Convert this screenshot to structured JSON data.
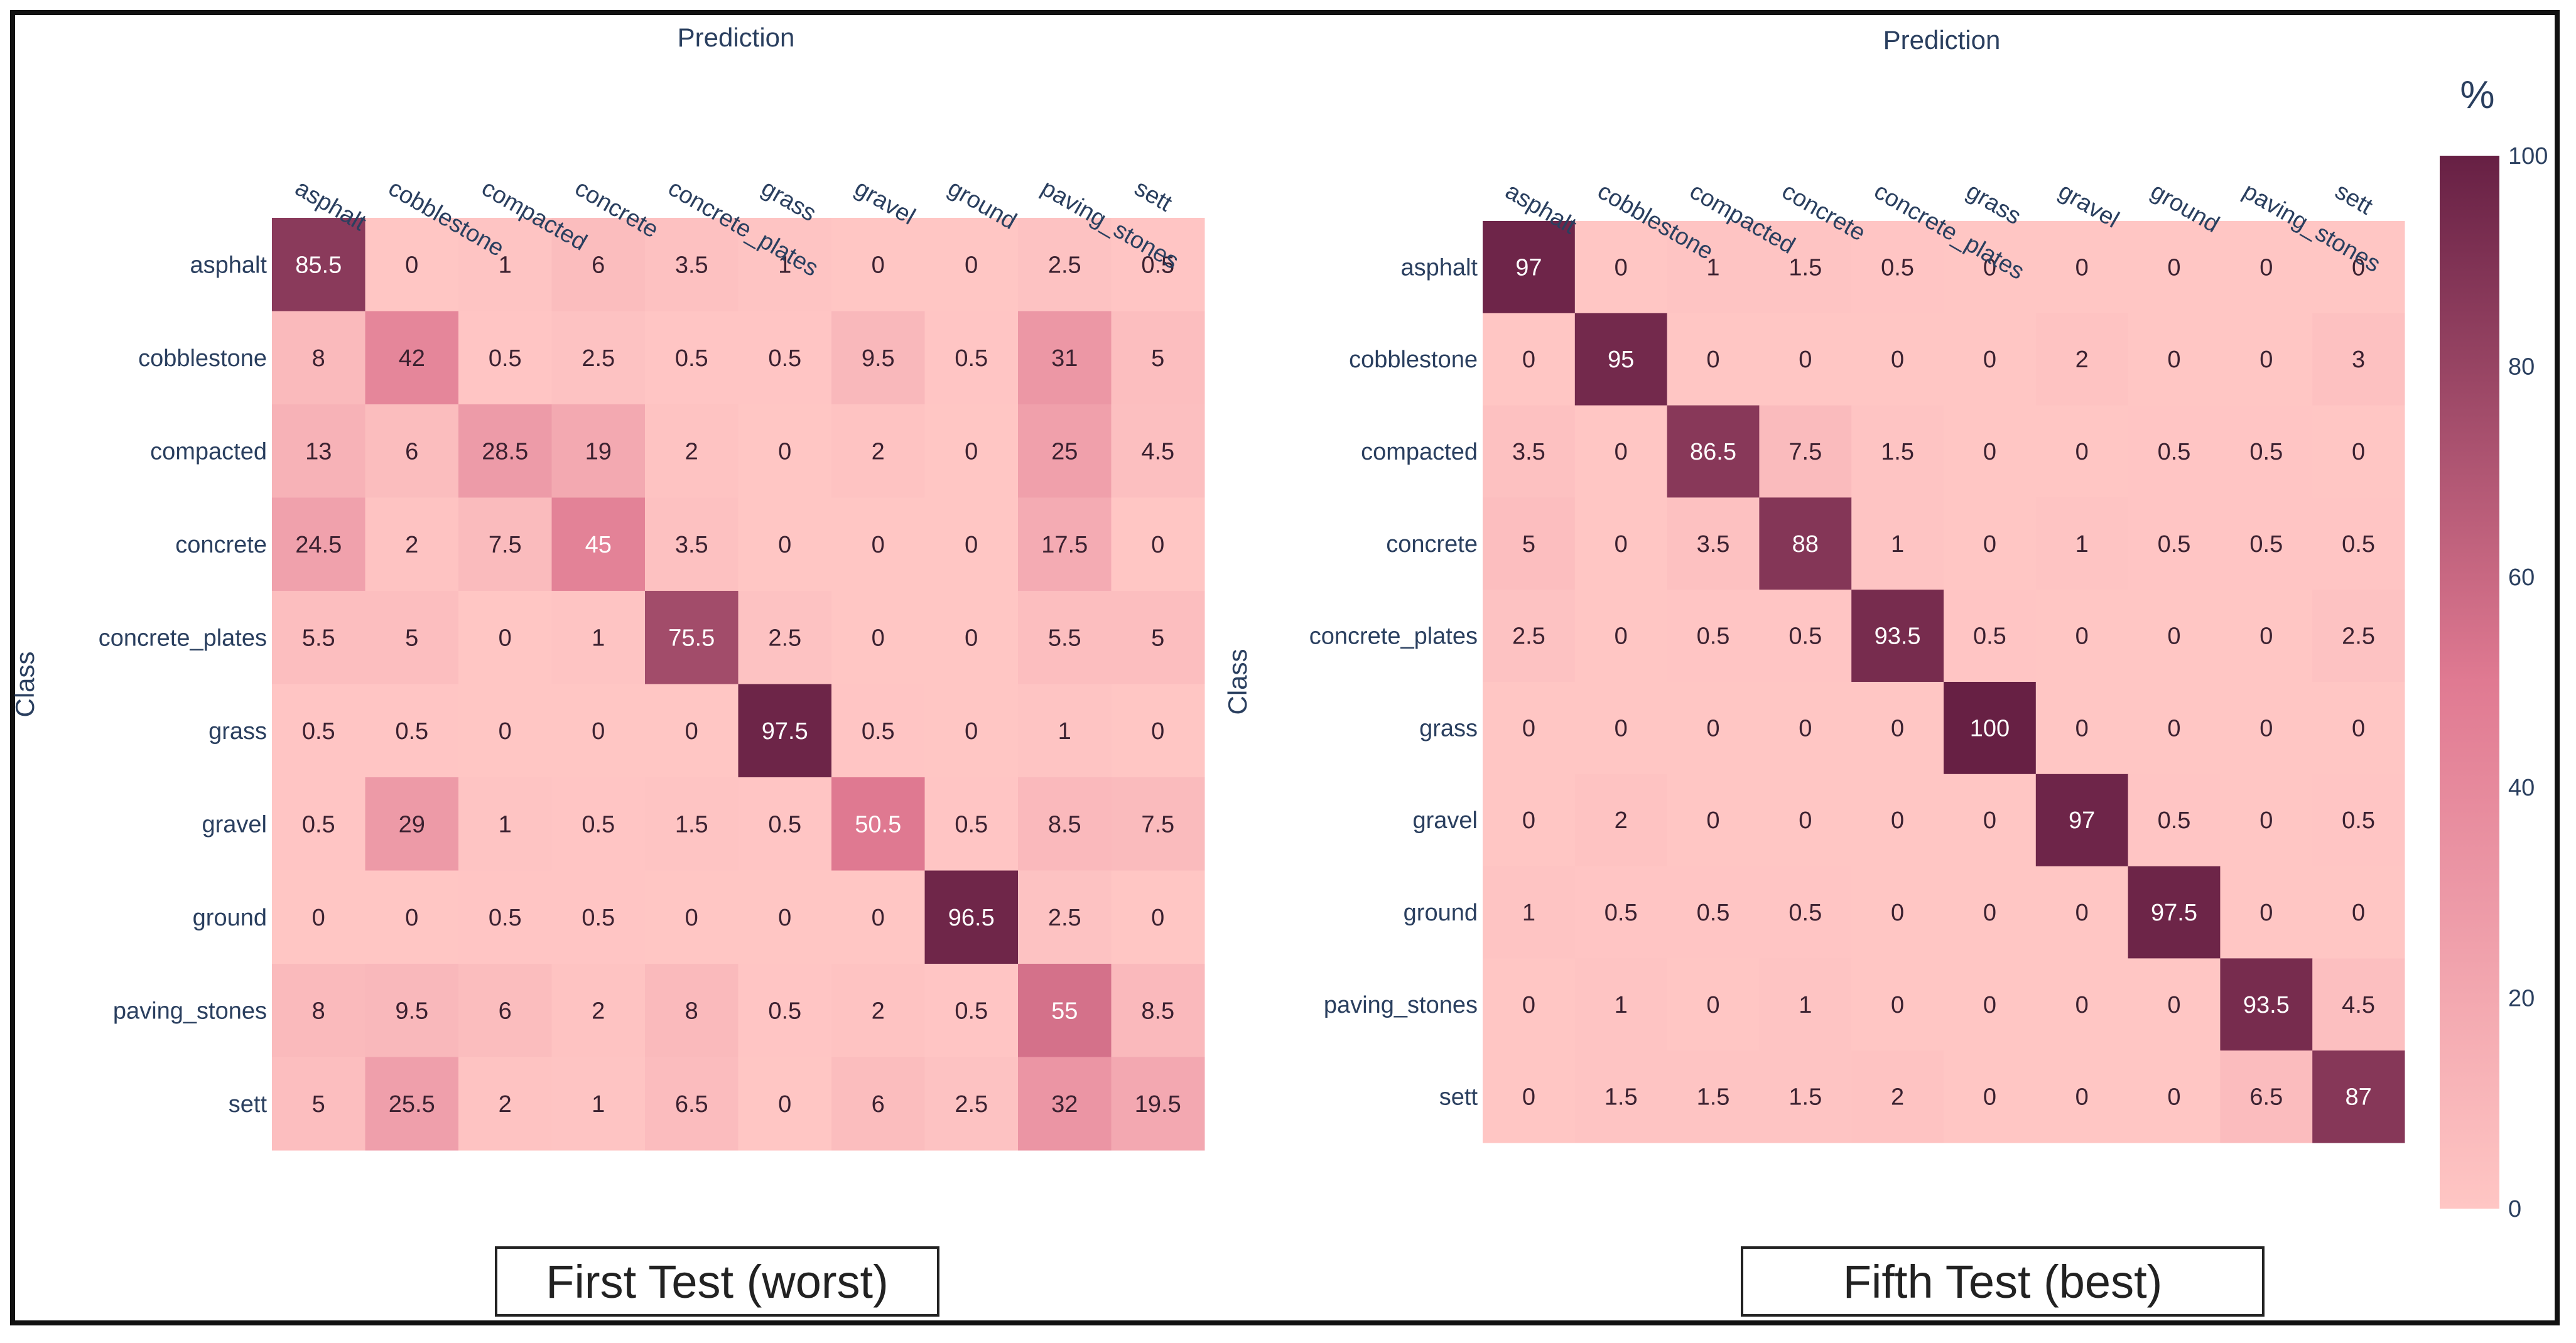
{
  "chart_data": [
    {
      "type": "heatmap",
      "title": "First Test (worst)",
      "xlabel": "Prediction",
      "ylabel": "Class",
      "x_categories": [
        "asphalt",
        "cobblestone",
        "compacted",
        "concrete",
        "concrete_plates",
        "grass",
        "gravel",
        "ground",
        "paving_stones",
        "sett"
      ],
      "y_categories": [
        "asphalt",
        "cobblestone",
        "compacted",
        "concrete",
        "concrete_plates",
        "grass",
        "gravel",
        "ground",
        "paving_stones",
        "sett"
      ],
      "values": [
        [
          "85.5",
          "0",
          "1",
          "6",
          "3.5",
          "1",
          "0",
          "0",
          "2.5",
          "0.5"
        ],
        [
          "8",
          "42",
          "0.5",
          "2.5",
          "0.5",
          "0.5",
          "9.5",
          "0.5",
          "31",
          "5"
        ],
        [
          "13",
          "6",
          "28.5",
          "19",
          "2",
          "0",
          "2",
          "0",
          "25",
          "4.5"
        ],
        [
          "24.5",
          "2",
          "7.5",
          "45",
          "3.5",
          "0",
          "0",
          "0",
          "17.5",
          "0"
        ],
        [
          "5.5",
          "5",
          "0",
          "1",
          "75.5",
          "2.5",
          "0",
          "0",
          "5.5",
          "5"
        ],
        [
          "0.5",
          "0.5",
          "0",
          "0",
          "0",
          "97.5",
          "0.5",
          "0",
          "1",
          "0"
        ],
        [
          "0.5",
          "29",
          "1",
          "0.5",
          "1.5",
          "0.5",
          "50.5",
          "0.5",
          "8.5",
          "7.5"
        ],
        [
          "0",
          "0",
          "0.5",
          "0.5",
          "0",
          "0",
          "0",
          "96.5",
          "2.5",
          "0"
        ],
        [
          "8",
          "9.5",
          "6",
          "2",
          "8",
          "0.5",
          "2",
          "0.5",
          "55",
          "8.5"
        ],
        [
          "5",
          "25.5",
          "2",
          "1",
          "6.5",
          "0",
          "6",
          "2.5",
          "32",
          "19.5"
        ]
      ],
      "zlim": [
        0,
        100
      ]
    },
    {
      "type": "heatmap",
      "title": "Fifth Test (best)",
      "xlabel": "Prediction",
      "ylabel": "Class",
      "x_categories": [
        "asphalt",
        "cobblestone",
        "compacted",
        "concrete",
        "concrete_plates",
        "grass",
        "gravel",
        "ground",
        "paving_stones",
        "sett"
      ],
      "y_categories": [
        "asphalt",
        "cobblestone",
        "compacted",
        "concrete",
        "concrete_plates",
        "grass",
        "gravel",
        "ground",
        "paving_stones",
        "sett"
      ],
      "values": [
        [
          "97",
          "0",
          "1",
          "1.5",
          "0.5",
          "0",
          "0",
          "0",
          "0",
          "0"
        ],
        [
          "0",
          "95",
          "0",
          "0",
          "0",
          "0",
          "2",
          "0",
          "0",
          "3"
        ],
        [
          "3.5",
          "0",
          "86.5",
          "7.5",
          "1.5",
          "0",
          "0",
          "0.5",
          "0.5",
          "0"
        ],
        [
          "5",
          "0",
          "3.5",
          "88",
          "1",
          "0",
          "1",
          "0.5",
          "0.5",
          "0.5"
        ],
        [
          "2.5",
          "0",
          "0.5",
          "0.5",
          "93.5",
          "0.5",
          "0",
          "0",
          "0",
          "2.5"
        ],
        [
          "0",
          "0",
          "0",
          "0",
          "0",
          "100",
          "0",
          "0",
          "0",
          "0"
        ],
        [
          "0",
          "2",
          "0",
          "0",
          "0",
          "0",
          "97",
          "0.5",
          "0",
          "0.5"
        ],
        [
          "1",
          "0.5",
          "0.5",
          "0.5",
          "0",
          "0",
          "0",
          "97.5",
          "0",
          "0"
        ],
        [
          "0",
          "1",
          "0",
          "1",
          "0",
          "0",
          "0",
          "0",
          "93.5",
          "4.5"
        ],
        [
          "0",
          "1.5",
          "1.5",
          "1.5",
          "2",
          "0",
          "0",
          "0",
          "6.5",
          "87"
        ]
      ],
      "zlim": [
        0,
        100
      ]
    }
  ],
  "colorbar": {
    "title": "%",
    "ticks": [
      "0",
      "20",
      "40",
      "60",
      "80",
      "100"
    ],
    "color_low": "#ffc6c4",
    "color_high": "#672044"
  },
  "colors": {
    "axis_text": "#2a3f5f",
    "cell_text_dark": "#3b2130",
    "cell_text_light": "#ffffff"
  }
}
